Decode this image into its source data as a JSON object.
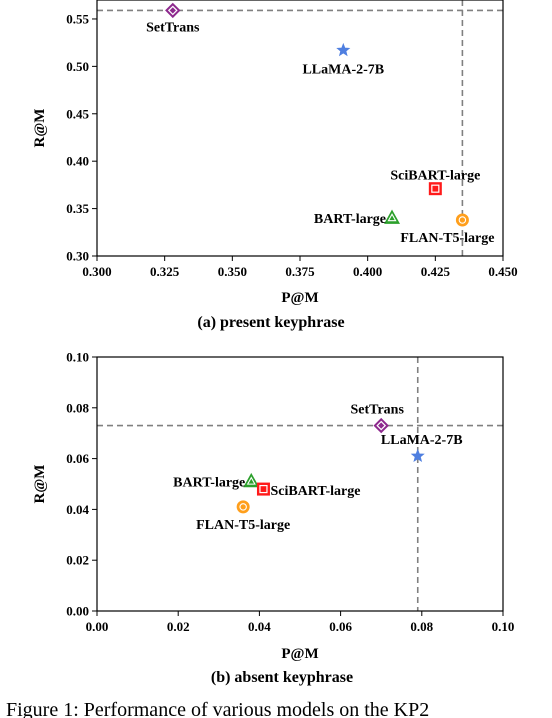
{
  "figure_caption": "Figure 1: Performance of various models on the KP2",
  "chart_data": [
    {
      "type": "scatter",
      "caption": "(a) present keyphrase",
      "xlabel": "P@M",
      "ylabel": "R@M",
      "xlim": [
        0.3,
        0.45
      ],
      "ylim": [
        0.3,
        0.57
      ],
      "xticks": [
        "0.300",
        "0.325",
        "0.350",
        "0.375",
        "0.400",
        "0.425",
        "0.450"
      ],
      "yticks": [
        "0.30",
        "0.35",
        "0.40",
        "0.45",
        "0.50",
        "0.55"
      ],
      "reference_lines": {
        "x": 0.435,
        "y": 0.559
      },
      "points": [
        {
          "name": "SetTrans",
          "x": 0.328,
          "y": 0.559,
          "marker": "diamond",
          "color": "#8e2a8e"
        },
        {
          "name": "LLaMA-2-7B",
          "x": 0.391,
          "y": 0.517,
          "marker": "star",
          "color": "#4f7fe0"
        },
        {
          "name": "SciBART-large",
          "x": 0.425,
          "y": 0.371,
          "marker": "square",
          "color": "#ff1a1a"
        },
        {
          "name": "BART-large",
          "x": 0.409,
          "y": 0.34,
          "marker": "triangle",
          "color": "#2ca02c"
        },
        {
          "name": "FLAN-T5-large",
          "x": 0.435,
          "y": 0.338,
          "marker": "circle",
          "color": "#ff9f1c"
        }
      ]
    },
    {
      "type": "scatter",
      "caption": "(b) absent keyphrase",
      "xlabel": "P@M",
      "ylabel": "R@M",
      "xlim": [
        0.0,
        0.1
      ],
      "ylim": [
        0.0,
        0.1
      ],
      "xticks": [
        "0.00",
        "0.02",
        "0.04",
        "0.06",
        "0.08",
        "0.10"
      ],
      "yticks": [
        "0.00",
        "0.02",
        "0.04",
        "0.06",
        "0.08",
        "0.10"
      ],
      "reference_lines": {
        "x": 0.079,
        "y": 0.073
      },
      "points": [
        {
          "name": "SetTrans",
          "x": 0.07,
          "y": 0.073,
          "marker": "diamond",
          "color": "#8e2a8e"
        },
        {
          "name": "LLaMA-2-7B",
          "x": 0.079,
          "y": 0.061,
          "marker": "star",
          "color": "#4f7fe0"
        },
        {
          "name": "BART-large",
          "x": 0.038,
          "y": 0.051,
          "marker": "triangle",
          "color": "#2ca02c"
        },
        {
          "name": "SciBART-large",
          "x": 0.041,
          "y": 0.048,
          "marker": "square",
          "color": "#ff1a1a"
        },
        {
          "name": "FLAN-T5-large",
          "x": 0.036,
          "y": 0.041,
          "marker": "circle",
          "color": "#ff9f1c"
        }
      ]
    }
  ]
}
